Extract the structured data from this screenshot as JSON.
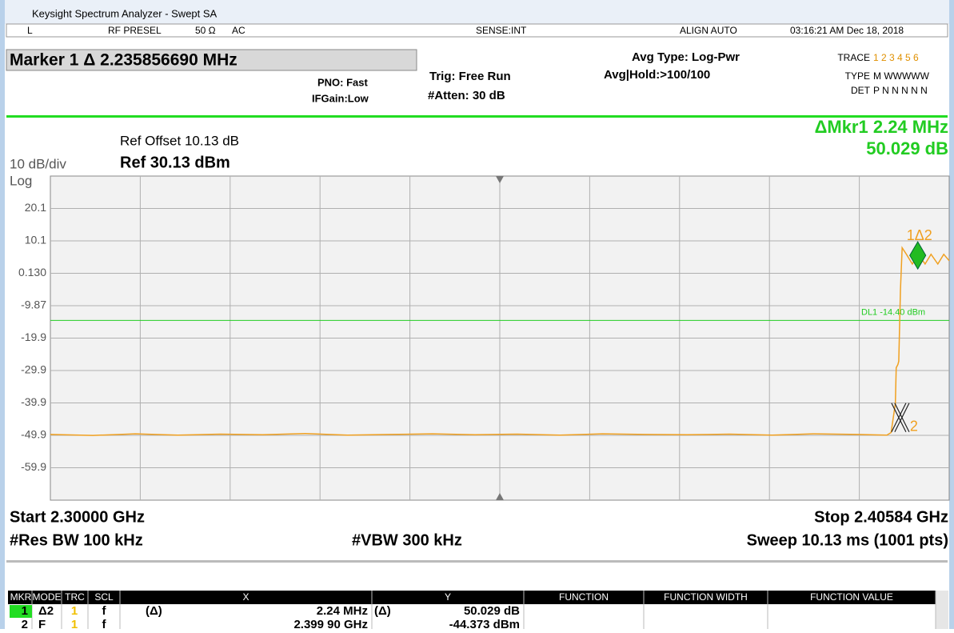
{
  "window": {
    "title": "Keysight Spectrum Analyzer - Swept SA"
  },
  "status": {
    "mode": "L",
    "presel": "RF PRESEL",
    "impedance": "50 Ω",
    "coupling": "AC",
    "sense": "SENSE:INT",
    "align": "ALIGN AUTO",
    "datetime": "03:16:21 AM Dec 18, 2018"
  },
  "header": {
    "marker": "Marker 1 Δ 2.235856690 MHz",
    "pno": "PNO: Fast",
    "ifgain": "IFGain:Low",
    "trig": "Trig: Free Run",
    "atten": "#Atten: 30 dB",
    "avg_type": "Avg Type: Log-Pwr",
    "avg_hold": "Avg|Hold:>100/100",
    "trace_label": "TRACE",
    "trace_values": "1 2 3 4 5 6",
    "type_label": "TYPE",
    "type_values": "M WWWWW",
    "det_label": "DET",
    "det_values": "P N N N N N"
  },
  "chart_data": {
    "type": "line",
    "ref_offset": "Ref Offset 10.13 dB",
    "scale": "10 dB/div",
    "ref_level": "Ref 30.13 dBm",
    "scale_type": "Log",
    "delta_marker": "ΔMkr1 2.24 MHz",
    "delta_value": "50.029 dB",
    "display_line": {
      "label": "DL1 -14.40 dBm",
      "value": -14.4
    },
    "xlim": [
      2.3,
      2.40584
    ],
    "ylim": [
      -69.87,
      30.13
    ],
    "yticks": [
      {
        "value": 20.13,
        "label": "20.1"
      },
      {
        "value": 10.13,
        "label": "10.1"
      },
      {
        "value": 0.13,
        "label": "0.130"
      },
      -9.87,
      {
        "value": -19.87,
        "label": "-19.9"
      },
      {
        "value": -29.87,
        "label": "-29.9"
      },
      {
        "value": -39.87,
        "label": "-39.9"
      },
      {
        "value": -49.87,
        "label": "-49.9"
      },
      {
        "value": -59.87,
        "label": "-59.9"
      }
    ],
    "grid": true,
    "series": [
      {
        "name": "Trace 1",
        "color": "#f0a020",
        "x": [
          2.3,
          2.305,
          2.31,
          2.315,
          2.32,
          2.325,
          2.33,
          2.335,
          2.34,
          2.345,
          2.35,
          2.355,
          2.36,
          2.365,
          2.37,
          2.375,
          2.38,
          2.385,
          2.39,
          2.395,
          2.3985,
          2.399,
          2.3995,
          2.3996,
          2.3998,
          2.3999,
          2.4001,
          2.4003,
          2.4008,
          2.4015,
          2.4022,
          2.403,
          2.4037,
          2.4045,
          2.4052,
          2.40584
        ],
        "values": [
          -49.6,
          -49.9,
          -49.4,
          -49.8,
          -49.5,
          -49.7,
          -49.3,
          -49.8,
          -49.6,
          -49.4,
          -49.7,
          -49.5,
          -49.8,
          -49.4,
          -49.6,
          -49.7,
          -49.5,
          -49.8,
          -49.4,
          -49.6,
          -49.8,
          -49.0,
          -40,
          -29,
          -28,
          -27,
          -5,
          8,
          6,
          3,
          6,
          3,
          6,
          3,
          6,
          4
        ]
      }
    ],
    "markers": [
      {
        "label": "1Δ2",
        "x": 2.40214,
        "value": 5.656
      },
      {
        "label": "2",
        "x": 2.3999,
        "value": -44.373
      }
    ],
    "start": "Start 2.30000 GHz",
    "stop": "Stop 2.40584 GHz",
    "rbw": "#Res BW 100 kHz",
    "vbw": "#VBW 300 kHz",
    "sweep": "Sweep  10.13 ms (1001 pts)"
  },
  "marker_table": {
    "columns": [
      "MKR",
      "MODE",
      "TRC",
      "SCL",
      "X",
      "Y",
      "FUNCTION",
      "FUNCTION WIDTH",
      "FUNCTION VALUE"
    ],
    "rows": [
      {
        "mkr": "1",
        "mode": "Δ2",
        "trc": "1",
        "scl": "f",
        "x_mode": "(Δ)",
        "x": "2.24 MHz",
        "y_mode": "(Δ)",
        "y": "50.029 dB"
      },
      {
        "mkr": "2",
        "mode": "F",
        "trc": "1",
        "scl": "f",
        "x": "2.399 90 GHz",
        "y": "-44.373 dBm"
      }
    ]
  }
}
